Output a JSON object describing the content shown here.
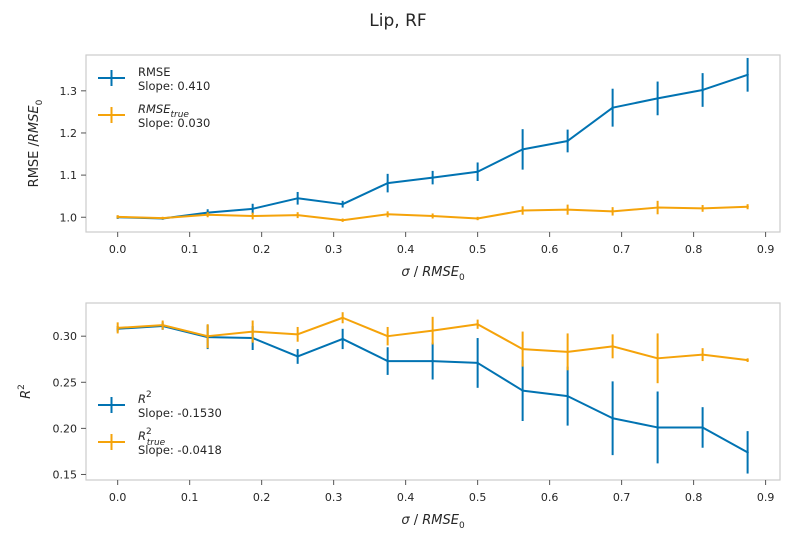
{
  "figure": {
    "title": "Lip, RF"
  },
  "chart_data": [
    {
      "type": "line",
      "ylabel_html": "RMSE /<tspan font-style='italic'>RMSE</tspan><tspan font-size='9' dy='4'>0</tspan>",
      "xlabel_html": "<tspan font-style='italic'>σ</tspan> / <tspan font-style='italic'>RMSE</tspan><tspan font-size='9' dy='4'>0</tspan>",
      "xlim": [
        -0.044,
        0.92
      ],
      "ylim": [
        0.965,
        1.385
      ],
      "xticks": [
        0.0,
        0.1,
        0.2,
        0.3,
        0.4,
        0.5,
        0.6,
        0.7,
        0.8,
        0.9
      ],
      "xtick_labels": [
        "0.0",
        "0.1",
        "0.2",
        "0.3",
        "0.4",
        "0.5",
        "0.6",
        "0.7",
        "0.8",
        "0.9"
      ],
      "yticks": [
        1.0,
        1.1,
        1.2,
        1.3
      ],
      "ytick_labels": [
        "1.0",
        "1.1",
        "1.2",
        "1.3"
      ],
      "legend_position": "top-left",
      "x": [
        0.0,
        0.0625,
        0.125,
        0.1875,
        0.25,
        0.3125,
        0.375,
        0.4375,
        0.5,
        0.5625,
        0.625,
        0.6875,
        0.75,
        0.8125,
        0.875
      ],
      "series": [
        {
          "name_html": "RMSE",
          "slope_label": "Slope: 0.410",
          "color": "#0173b2",
          "values": [
            1.0,
            0.997,
            1.011,
            1.02,
            1.045,
            1.031,
            1.081,
            1.094,
            1.108,
            1.161,
            1.181,
            1.26,
            1.282,
            1.302,
            1.338
          ],
          "errors": [
            0.004,
            0.003,
            0.008,
            0.012,
            0.015,
            0.008,
            0.022,
            0.016,
            0.022,
            0.048,
            0.027,
            0.045,
            0.04,
            0.04,
            0.04
          ]
        },
        {
          "name_html": "<tspan font-style='italic'>RMSE</tspan><tspan font-style='italic' font-size='9' dy='4'>true</tspan>",
          "slope_label": "Slope: 0.030",
          "color": "#f5a30a",
          "values": [
            1.001,
            0.998,
            1.006,
            1.003,
            1.005,
            0.993,
            1.007,
            1.003,
            0.997,
            1.016,
            1.018,
            1.014,
            1.023,
            1.021,
            1.025
          ],
          "errors": [
            0.004,
            0.003,
            0.006,
            0.008,
            0.007,
            0.004,
            0.007,
            0.006,
            0.004,
            0.01,
            0.012,
            0.01,
            0.016,
            0.008,
            0.006
          ]
        }
      ]
    },
    {
      "type": "line",
      "ylabel_html": "<tspan font-style='italic'>R</tspan><tspan font-size='9' dy='-6'>2</tspan>",
      "xlabel_html": "<tspan font-style='italic'>σ</tspan> / <tspan font-style='italic'>RMSE</tspan><tspan font-size='9' dy='4'>0</tspan>",
      "xlim": [
        -0.044,
        0.92
      ],
      "ylim": [
        0.144,
        0.336
      ],
      "xticks": [
        0.0,
        0.1,
        0.2,
        0.3,
        0.4,
        0.5,
        0.6,
        0.7,
        0.8,
        0.9
      ],
      "xtick_labels": [
        "0.0",
        "0.1",
        "0.2",
        "0.3",
        "0.4",
        "0.5",
        "0.6",
        "0.7",
        "0.8",
        "0.9"
      ],
      "yticks": [
        0.15,
        0.2,
        0.25,
        0.3
      ],
      "ytick_labels": [
        "0.15",
        "0.20",
        "0.25",
        "0.30"
      ],
      "legend_position": "lower-left",
      "x": [
        0.0,
        0.0625,
        0.125,
        0.1875,
        0.25,
        0.3125,
        0.375,
        0.4375,
        0.5,
        0.5625,
        0.625,
        0.6875,
        0.75,
        0.8125,
        0.875
      ],
      "series": [
        {
          "name_html": "<tspan font-style='italic'>R</tspan><tspan font-size='9' dy='-6'>2</tspan>",
          "slope_label": "Slope: -0.1530",
          "color": "#0173b2",
          "values": [
            0.308,
            0.311,
            0.299,
            0.298,
            0.278,
            0.297,
            0.273,
            0.273,
            0.271,
            0.241,
            0.235,
            0.211,
            0.201,
            0.201,
            0.174
          ],
          "errors": [
            0.003,
            0.004,
            0.013,
            0.013,
            0.008,
            0.011,
            0.015,
            0.02,
            0.027,
            0.033,
            0.032,
            0.04,
            0.039,
            0.022,
            0.023
          ]
        },
        {
          "name_html": "<tspan font-style='italic'>R</tspan><tspan font-size='9' dy='-6'>2</tspan><tspan font-style='italic' font-size='9' dx='-5' dy='11'>true</tspan>",
          "slope_label": "Slope: -0.0418",
          "color": "#f5a30a",
          "values": [
            0.309,
            0.312,
            0.3,
            0.305,
            0.302,
            0.32,
            0.3,
            0.306,
            0.313,
            0.286,
            0.283,
            0.289,
            0.276,
            0.28,
            0.274
          ],
          "errors": [
            0.006,
            0.005,
            0.013,
            0.012,
            0.008,
            0.006,
            0.01,
            0.015,
            0.005,
            0.019,
            0.02,
            0.013,
            0.027,
            0.007,
            0.002
          ]
        }
      ]
    }
  ]
}
